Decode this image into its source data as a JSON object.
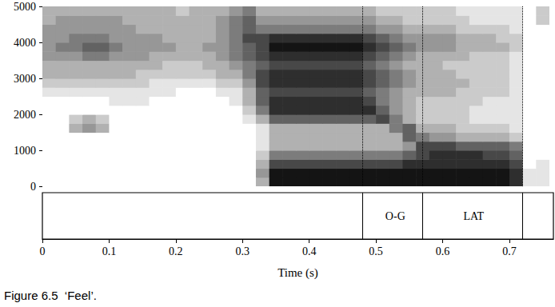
{
  "chart_data": {
    "type": "spectrogram",
    "caption": "Figure 6.5  ‘Feel’.",
    "x_label": "Time (s)",
    "xlim": [
      0,
      0.766
    ],
    "xticks": [
      0,
      0.1,
      0.2,
      0.3,
      0.4,
      0.5,
      0.6,
      0.7
    ],
    "ylim": [
      0,
      5000
    ],
    "yticks": [
      0,
      1000,
      2000,
      3000,
      4000,
      5000
    ],
    "grid": false,
    "color": "#000000",
    "times": [
      0,
      0.02,
      0.04,
      0.06,
      0.08,
      0.1,
      0.12,
      0.14,
      0.16,
      0.18,
      0.2,
      0.22,
      0.24,
      0.26,
      0.28,
      0.3,
      0.32,
      0.34,
      0.36,
      0.38,
      0.4,
      0.42,
      0.44,
      0.46,
      0.48,
      0.5,
      0.52,
      0.54,
      0.56,
      0.58,
      0.6,
      0.62,
      0.64,
      0.66,
      0.68,
      0.7,
      0.72,
      0.74,
      0.76
    ],
    "frequencies": [
      0,
      250,
      500,
      750,
      1000,
      1250,
      1500,
      1750,
      2000,
      2250,
      2500,
      2750,
      3000,
      3250,
      3500,
      3750,
      4000,
      4250,
      4500,
      4750
    ],
    "intensity": [
      [
        0,
        0,
        0,
        0,
        0,
        0,
        0,
        0,
        0,
        0,
        0,
        0,
        0,
        0,
        0,
        0,
        3,
        9,
        9,
        9,
        9,
        9,
        9,
        9,
        9,
        9,
        9,
        9,
        9,
        9,
        9,
        9,
        9,
        9,
        9,
        8,
        1,
        1,
        0
      ],
      [
        0,
        0,
        0,
        0,
        0,
        0,
        0,
        0,
        0,
        0,
        0,
        0,
        0,
        0,
        0,
        0,
        4,
        9,
        9,
        9,
        9,
        9,
        9,
        9,
        9,
        9,
        9,
        9,
        9,
        9,
        9,
        9,
        9,
        9,
        9,
        8,
        1,
        1,
        0
      ],
      [
        0,
        0,
        0,
        0,
        0,
        0,
        0,
        0,
        0,
        0,
        0,
        0,
        0,
        0,
        0,
        0,
        3,
        7,
        7,
        7,
        7,
        7,
        7,
        7,
        7,
        7,
        7,
        8,
        8,
        8,
        8,
        8,
        8,
        8,
        8,
        7,
        0,
        1,
        0
      ],
      [
        0,
        0,
        0,
        0,
        0,
        0,
        0,
        0,
        0,
        0,
        0,
        0,
        0,
        0,
        0,
        0,
        2,
        5,
        5,
        5,
        5,
        5,
        5,
        5,
        5,
        5,
        5,
        6,
        7,
        8,
        8,
        8,
        8,
        7,
        7,
        6,
        0,
        0,
        0
      ],
      [
        0,
        0,
        0,
        0,
        0,
        0,
        0,
        0,
        0,
        0,
        0,
        0,
        0,
        0,
        0,
        0,
        1,
        3,
        3,
        3,
        3,
        3,
        3,
        3,
        3,
        3,
        3,
        4,
        7,
        7,
        7,
        6,
        6,
        6,
        6,
        5,
        0,
        0,
        0
      ],
      [
        0,
        0,
        0,
        0,
        0,
        0,
        0,
        0,
        0,
        0,
        0,
        0,
        0,
        0,
        0,
        0,
        1,
        3,
        3,
        3,
        3,
        3,
        3,
        3,
        3,
        3,
        3,
        6,
        5,
        4,
        4,
        3,
        3,
        3,
        3,
        2,
        0,
        0,
        0
      ],
      [
        0,
        0,
        3,
        4,
        3,
        0,
        0,
        0,
        0,
        0,
        0,
        0,
        0,
        0,
        0,
        0,
        1,
        3,
        3,
        3,
        3,
        3,
        3,
        3,
        3,
        3,
        5,
        6,
        3,
        3,
        3,
        2,
        2,
        2,
        2,
        1,
        0,
        0,
        0
      ],
      [
        0,
        0,
        2,
        3,
        2,
        0,
        0,
        0,
        0,
        0,
        0,
        0,
        0,
        0,
        0,
        1,
        3,
        6,
        6,
        6,
        6,
        6,
        6,
        6,
        6,
        7,
        5,
        3,
        2,
        2,
        2,
        2,
        1,
        1,
        1,
        1,
        0,
        0,
        0
      ],
      [
        0,
        0,
        0,
        0,
        0,
        0,
        0,
        0,
        0,
        0,
        0,
        0,
        0,
        0,
        0,
        2,
        5,
        8,
        8,
        8,
        8,
        8,
        8,
        8,
        8,
        6,
        4,
        3,
        2,
        2,
        2,
        2,
        1,
        1,
        1,
        1,
        0,
        0,
        0
      ],
      [
        0,
        0,
        0,
        0,
        0,
        1,
        1,
        1,
        0,
        0,
        0,
        0,
        0,
        0,
        1,
        3,
        6,
        8,
        8,
        8,
        8,
        8,
        8,
        8,
        7,
        5,
        4,
        3,
        2,
        2,
        2,
        2,
        2,
        1,
        1,
        1,
        0,
        0,
        0
      ],
      [
        1,
        1,
        1,
        1,
        1,
        1,
        1,
        1,
        1,
        1,
        0,
        0,
        0,
        1,
        1,
        3,
        6,
        7,
        7,
        7,
        7,
        7,
        7,
        7,
        6,
        5,
        4,
        3,
        3,
        3,
        3,
        2,
        2,
        2,
        2,
        1,
        0,
        0,
        0
      ],
      [
        2,
        2,
        2,
        2,
        2,
        2,
        2,
        2,
        1,
        1,
        1,
        1,
        1,
        2,
        2,
        4,
        7,
        8,
        8,
        8,
        8,
        8,
        8,
        8,
        7,
        6,
        5,
        4,
        3,
        3,
        3,
        3,
        2,
        2,
        2,
        1,
        0,
        0,
        0
      ],
      [
        3,
        3,
        3,
        3,
        3,
        3,
        3,
        2,
        2,
        2,
        2,
        2,
        2,
        3,
        3,
        5,
        7,
        8,
        8,
        8,
        8,
        8,
        8,
        8,
        7,
        6,
        5,
        4,
        3,
        3,
        3,
        2,
        2,
        2,
        2,
        1,
        0,
        0,
        0
      ],
      [
        3,
        3,
        3,
        3,
        3,
        3,
        3,
        3,
        3,
        2,
        2,
        2,
        3,
        3,
        4,
        5,
        6,
        7,
        7,
        7,
        7,
        7,
        7,
        7,
        6,
        5,
        4,
        3,
        3,
        3,
        2,
        2,
        2,
        2,
        2,
        1,
        0,
        0,
        0
      ],
      [
        4,
        4,
        4,
        5,
        5,
        4,
        4,
        4,
        3,
        3,
        3,
        3,
        3,
        4,
        5,
        6,
        7,
        8,
        8,
        8,
        8,
        8,
        8,
        8,
        7,
        6,
        5,
        4,
        3,
        3,
        3,
        3,
        2,
        2,
        2,
        1,
        0,
        0,
        0
      ],
      [
        4,
        5,
        5,
        6,
        6,
        5,
        4,
        4,
        4,
        4,
        3,
        3,
        4,
        4,
        5,
        6,
        7,
        9,
        9,
        9,
        9,
        9,
        9,
        9,
        8,
        7,
        6,
        5,
        4,
        4,
        4,
        3,
        3,
        3,
        3,
        2,
        0,
        0,
        0
      ],
      [
        4,
        4,
        5,
        5,
        5,
        4,
        4,
        4,
        4,
        3,
        3,
        3,
        3,
        4,
        5,
        7,
        7,
        8,
        8,
        8,
        8,
        8,
        8,
        8,
        7,
        6,
        5,
        4,
        4,
        4,
        4,
        3,
        3,
        3,
        2,
        2,
        0,
        0,
        0
      ],
      [
        4,
        4,
        4,
        4,
        4,
        4,
        4,
        3,
        3,
        3,
        3,
        3,
        3,
        4,
        5,
        6,
        5,
        5,
        5,
        5,
        5,
        5,
        5,
        5,
        5,
        4,
        4,
        3,
        3,
        3,
        3,
        2,
        2,
        2,
        2,
        1,
        0,
        0,
        0
      ],
      [
        3,
        4,
        4,
        4,
        4,
        4,
        3,
        3,
        3,
        3,
        3,
        3,
        3,
        4,
        5,
        6,
        4,
        4,
        4,
        4,
        4,
        4,
        4,
        4,
        4,
        3,
        3,
        2,
        2,
        2,
        2,
        2,
        1,
        1,
        1,
        1,
        0,
        2,
        0
      ],
      [
        3,
        3,
        3,
        3,
        3,
        3,
        3,
        3,
        3,
        3,
        2,
        3,
        3,
        3,
        4,
        5,
        3,
        3,
        3,
        3,
        3,
        3,
        3,
        3,
        3,
        2,
        2,
        2,
        2,
        2,
        2,
        1,
        1,
        1,
        1,
        1,
        0,
        2,
        0
      ]
    ],
    "segments": [
      {
        "label": "O-G",
        "start": 0.483,
        "end": 0.575
      },
      {
        "label": "LAT",
        "start": 0.575,
        "end": 0.718
      }
    ]
  }
}
